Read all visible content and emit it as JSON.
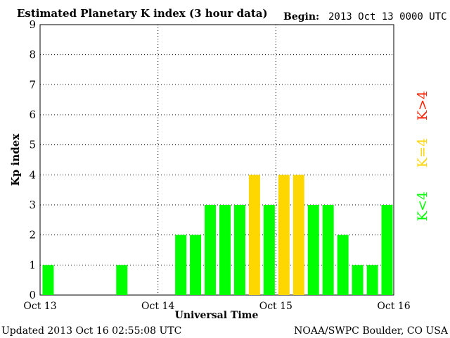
{
  "header": {
    "title": "Estimated Planetary K index (3 hour data)",
    "begin_label": "Begin:",
    "begin_value": "2013 Oct 13 0000 UTC"
  },
  "footer": {
    "updated": "Updated 2013 Oct 16 02:55:08 UTC",
    "source": "NOAA/SWPC Boulder, CO USA"
  },
  "legend": {
    "above": "K>4",
    "equal": "K=4",
    "below": "K<4"
  },
  "colors": {
    "below": "#00ff00",
    "equal": "#ffd700",
    "above": "#ff2000",
    "grid": "#000000",
    "text": "#000000"
  },
  "chart_data": {
    "type": "bar",
    "ylabel": "Kp index",
    "xlabel": "Universal Time",
    "ylim": [
      0,
      9
    ],
    "yticks": [
      "0",
      "1",
      "2",
      "3",
      "4",
      "5",
      "6",
      "7",
      "8",
      "9"
    ],
    "x_tick_labels": [
      "Oct 13",
      "Oct 14",
      "Oct 15",
      "Oct 16"
    ],
    "interval_hours": 3,
    "grid": "dotted, at each integer Kp and each day boundary",
    "series": [
      {
        "values": [
          1,
          0,
          0,
          0,
          0,
          1,
          0,
          0,
          0,
          2,
          2,
          3,
          3,
          3,
          4,
          3,
          4,
          4,
          3,
          3,
          2,
          1,
          1,
          3
        ]
      }
    ]
  }
}
